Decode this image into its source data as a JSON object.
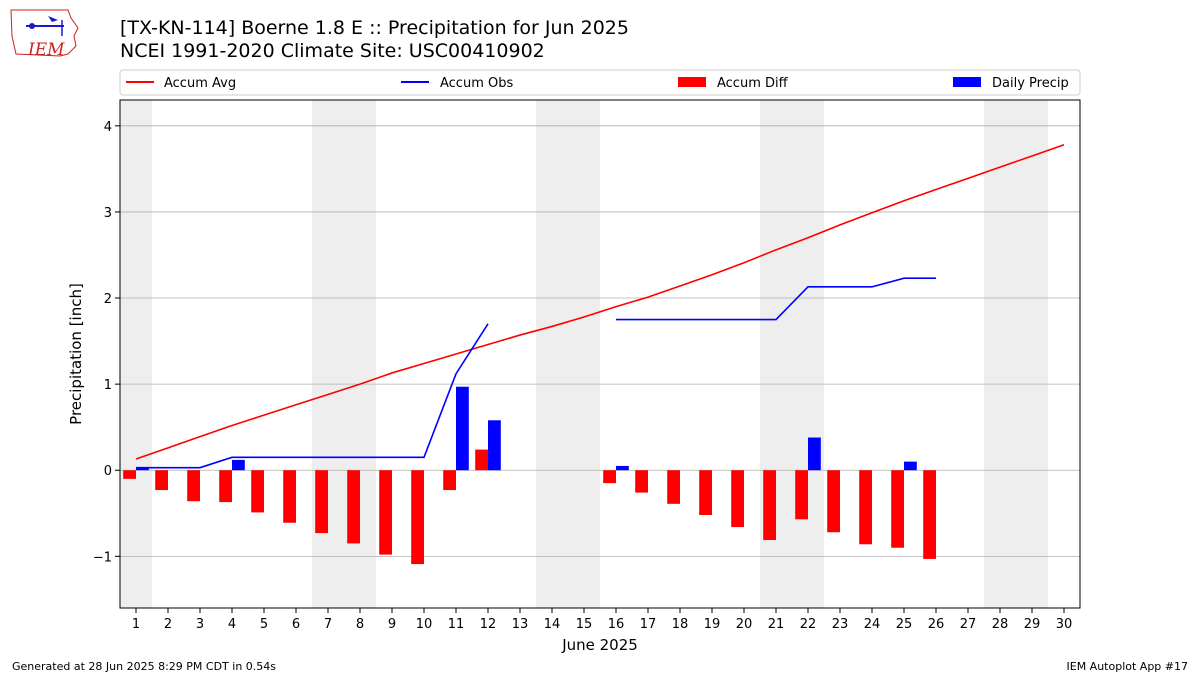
{
  "header": {
    "title_line1": "[TX-KN-114] Boerne 1.8 E :: Precipitation for Jun 2025",
    "title_line2": "NCEI 1991-2020 Climate Site: USC00410902"
  },
  "logo": {
    "text": "IEM",
    "color": "#cc2222"
  },
  "footer": {
    "left": "Generated at 28 Jun 2025 8:29 PM CDT in 0.54s",
    "right": "IEM Autoplot App #17"
  },
  "chart_data": {
    "type": "bar",
    "xlabel": "June 2025",
    "ylabel": "Precipitation [inch]",
    "xlim": [
      0.5,
      30.5
    ],
    "ylim": [
      -1.6,
      4.3
    ],
    "yticks": [
      -1,
      0,
      1,
      2,
      3,
      4
    ],
    "ytick_labels": [
      "−1",
      "0",
      "1",
      "2",
      "3",
      "4"
    ],
    "x": [
      1,
      2,
      3,
      4,
      5,
      6,
      7,
      8,
      9,
      10,
      11,
      12,
      13,
      14,
      15,
      16,
      17,
      18,
      19,
      20,
      21,
      22,
      23,
      24,
      25,
      26,
      27,
      28,
      29,
      30
    ],
    "grid": "horizontal",
    "legend_position": "top",
    "weekend_shading": [
      [
        0.5,
        1.5
      ],
      [
        6.5,
        8.5
      ],
      [
        13.5,
        15.5
      ],
      [
        20.5,
        22.5
      ],
      [
        27.5,
        29.5
      ]
    ],
    "colors": {
      "avg": "#ff0000",
      "obs": "#0000ff",
      "diff": "#ff0000",
      "daily": "#0000ff",
      "shade": "#eeeeee",
      "grid": "#b0b0b0"
    },
    "legend": [
      {
        "label": "Accum Avg",
        "kind": "line",
        "color": "#ff0000"
      },
      {
        "label": "Accum Obs",
        "kind": "line",
        "color": "#0000ff"
      },
      {
        "label": "Accum Diff",
        "kind": "bar",
        "color": "#ff0000"
      },
      {
        "label": "Daily Precip",
        "kind": "bar",
        "color": "#0000ff"
      }
    ],
    "series": [
      {
        "name": "Accum Avg",
        "type": "line",
        "x": [
          1,
          2,
          3,
          4,
          5,
          6,
          7,
          8,
          9,
          10,
          11,
          12,
          13,
          14,
          15,
          16,
          17,
          18,
          19,
          20,
          21,
          22,
          23,
          24,
          25,
          26,
          27,
          28,
          29,
          30
        ],
        "values": [
          0.13,
          0.26,
          0.39,
          0.52,
          0.64,
          0.76,
          0.88,
          1.0,
          1.13,
          1.24,
          1.35,
          1.46,
          1.57,
          1.67,
          1.78,
          1.9,
          2.01,
          2.14,
          2.27,
          2.41,
          2.56,
          2.7,
          2.85,
          2.99,
          3.13,
          3.26,
          3.39,
          3.52,
          3.65,
          3.78
        ]
      },
      {
        "name": "Accum Obs",
        "type": "line",
        "x": [
          1,
          2,
          3,
          4,
          5,
          6,
          7,
          8,
          9,
          10,
          11,
          12
        ],
        "values": [
          0.03,
          0.03,
          0.03,
          0.15,
          0.15,
          0.15,
          0.15,
          0.15,
          0.15,
          0.15,
          1.12,
          1.7
        ]
      },
      {
        "name": "Accum Obs (cont.)",
        "type": "line",
        "x": [
          16,
          17,
          18,
          19,
          20,
          21,
          22,
          23,
          24,
          25,
          26
        ],
        "values": [
          1.75,
          1.75,
          1.75,
          1.75,
          1.75,
          1.75,
          2.13,
          2.13,
          2.13,
          2.23,
          2.23
        ]
      },
      {
        "name": "Accum Diff",
        "type": "bar",
        "x": [
          1,
          2,
          3,
          4,
          5,
          6,
          7,
          8,
          9,
          10,
          11,
          12,
          16,
          17,
          18,
          19,
          20,
          21,
          22,
          23,
          24,
          25,
          26
        ],
        "values": [
          -0.1,
          -0.23,
          -0.36,
          -0.37,
          -0.49,
          -0.61,
          -0.73,
          -0.85,
          -0.98,
          -1.09,
          -0.23,
          0.24,
          -0.15,
          -0.26,
          -0.39,
          -0.52,
          -0.66,
          -0.81,
          -0.57,
          -0.72,
          -0.86,
          -0.9,
          -1.03
        ]
      },
      {
        "name": "Daily Precip",
        "type": "bar",
        "x": [
          1,
          4,
          11,
          12,
          16,
          22,
          25
        ],
        "values": [
          0.03,
          0.12,
          0.97,
          0.58,
          0.05,
          0.38,
          0.1
        ]
      }
    ]
  }
}
